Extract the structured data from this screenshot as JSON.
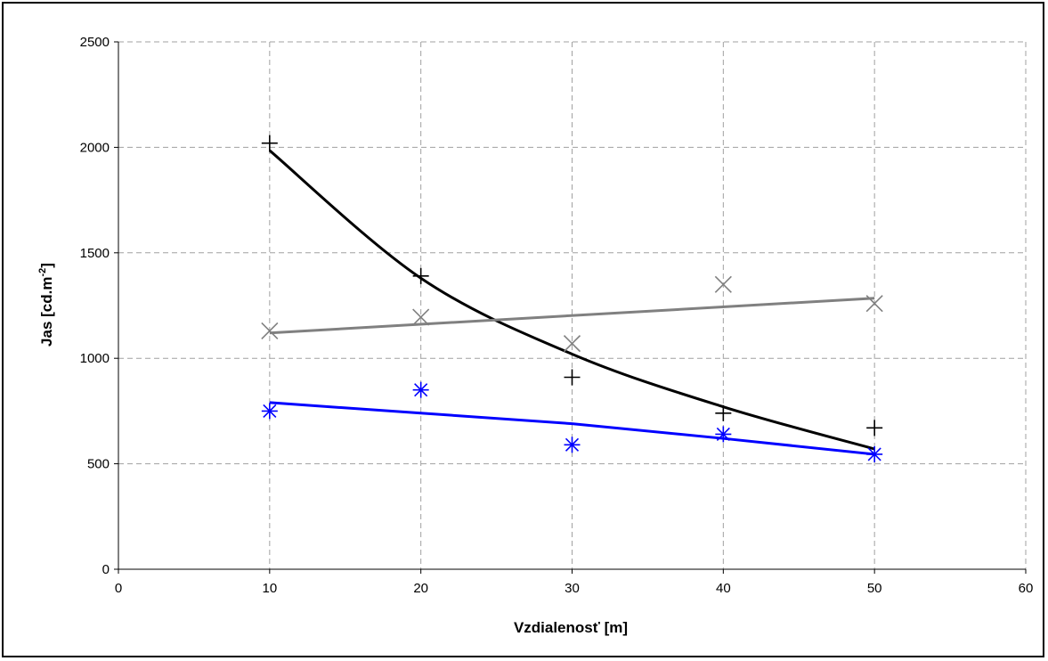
{
  "chart_data": {
    "type": "scatter",
    "title": "",
    "xlabel": "Vzdialenosť [m]",
    "ylabel": "Jas [cd.m",
    "ylabel_sup": "-2",
    "ylabel_end": "]",
    "xlim": [
      0,
      60
    ],
    "ylim": [
      0,
      2500
    ],
    "x_ticks": [
      "0",
      "10",
      "20",
      "30",
      "40",
      "50",
      "60"
    ],
    "y_ticks": [
      "0",
      "500",
      "1000",
      "1500",
      "2000",
      "2500"
    ],
    "grid": true,
    "legend": "none",
    "series": [
      {
        "marker": "plus",
        "color": "#000000",
        "x": [
          10,
          20,
          30,
          40,
          50
        ],
        "y": [
          2020,
          1390,
          910,
          740,
          670
        ],
        "trend": {
          "type": "power",
          "x": [
            10,
            20,
            30,
            40,
            50
          ],
          "y": [
            1985,
            1380,
            1020,
            770,
            570
          ]
        }
      },
      {
        "marker": "x",
        "color": "#808080",
        "x": [
          10,
          20,
          30,
          40,
          50
        ],
        "y": [
          1130,
          1195,
          1070,
          1350,
          1260
        ],
        "trend": {
          "type": "linear",
          "x": [
            10,
            50
          ],
          "y": [
            1120,
            1285
          ]
        }
      },
      {
        "marker": "star",
        "color": "#0000ff",
        "x": [
          10,
          20,
          30,
          40,
          50
        ],
        "y": [
          750,
          850,
          590,
          640,
          545
        ],
        "trend": {
          "type": "linear",
          "x": [
            10,
            20,
            30,
            40,
            50
          ],
          "y": [
            790,
            740,
            690,
            620,
            545
          ]
        }
      }
    ]
  }
}
